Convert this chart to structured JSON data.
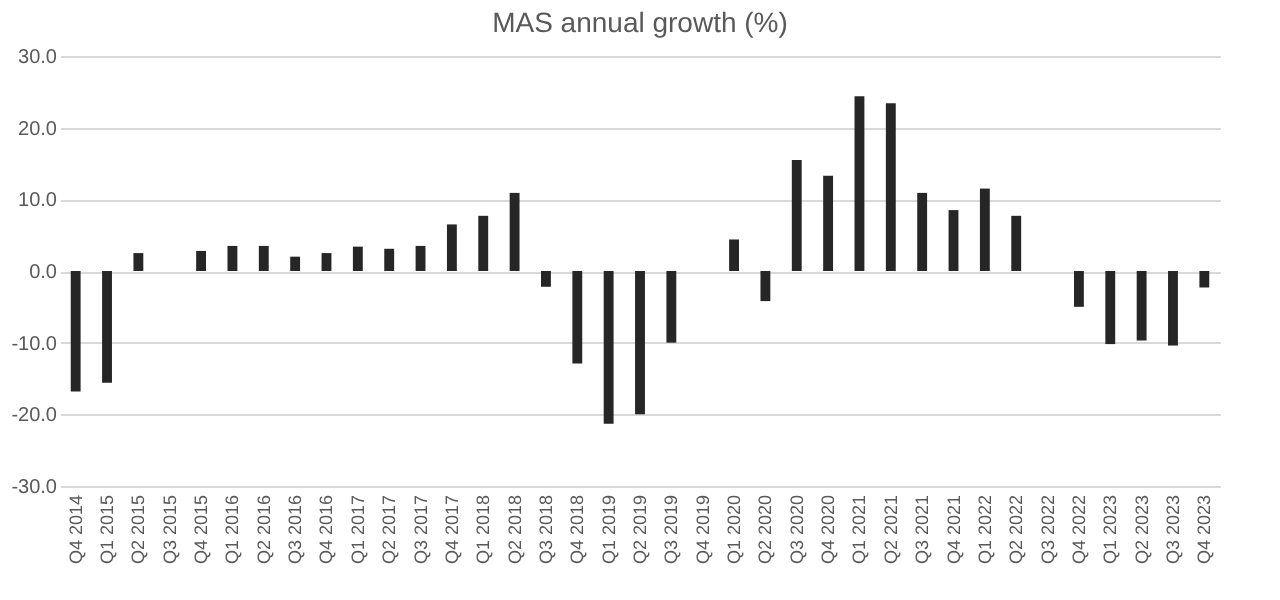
{
  "chart_data": {
    "type": "bar",
    "title": "MAS annual growth (%)",
    "categories": [
      "Q4 2014",
      "Q1 2015",
      "Q2 2015",
      "Q3 2015",
      "Q4 2015",
      "Q1 2016",
      "Q2 2016",
      "Q3 2016",
      "Q4 2016",
      "Q1 2017",
      "Q2 2017",
      "Q3 2017",
      "Q4 2017",
      "Q1 2018",
      "Q2 2018",
      "Q3 2018",
      "Q4 2018",
      "Q1 2019",
      "Q2 2019",
      "Q3 2019",
      "Q4 2019",
      "Q1 2020",
      "Q2 2020",
      "Q3 2020",
      "Q4 2020",
      "Q1 2021",
      "Q2 2021",
      "Q3 2021",
      "Q4 2021",
      "Q1 2022",
      "Q2 2022",
      "Q3 2022",
      "Q4 2022",
      "Q1 2023",
      "Q2 2023",
      "Q3 2023",
      "Q4 2023"
    ],
    "values": [
      -16.8,
      -15.6,
      2.5,
      null,
      2.8,
      3.5,
      3.5,
      2.0,
      2.5,
      3.4,
      3.1,
      3.5,
      6.5,
      7.7,
      10.9,
      -2.2,
      -12.9,
      -21.3,
      -20.0,
      -10.0,
      null,
      4.4,
      -4.2,
      15.5,
      13.3,
      24.4,
      23.4,
      10.9,
      8.5,
      11.5,
      7.7,
      null,
      -5.0,
      -10.2,
      -9.7,
      -10.4,
      -2.3
    ],
    "color": "#262626",
    "ylim": [
      -30,
      30
    ],
    "yticks": [
      {
        "value": -30,
        "label": "-30.0"
      },
      {
        "value": -20,
        "label": "-20.0"
      },
      {
        "value": -10,
        "label": "-10.0"
      },
      {
        "value": 0,
        "label": "0.0"
      },
      {
        "value": 10,
        "label": "10.0"
      },
      {
        "value": 20,
        "label": "20.0"
      },
      {
        "value": 30,
        "label": "30.0"
      }
    ],
    "grid": "y"
  }
}
